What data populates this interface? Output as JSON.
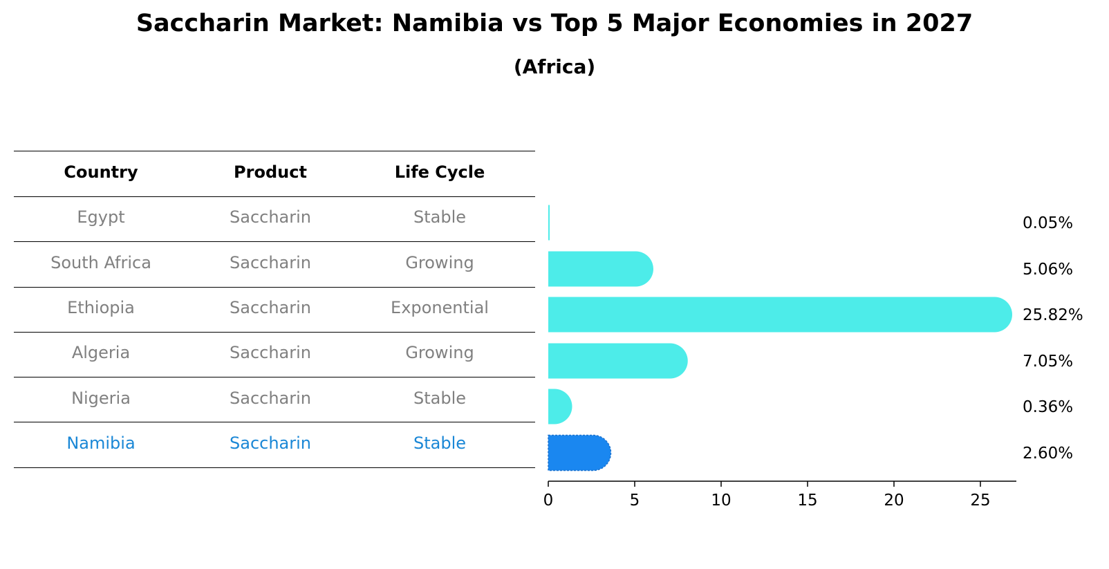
{
  "title": "Saccharin Market: Namibia vs Top 5 Major Economies in 2027",
  "subtitle": "(Africa)",
  "table": {
    "headers": [
      "Country",
      "Product",
      "Life Cycle"
    ],
    "rows": [
      {
        "country": "Egypt",
        "product": "Saccharin",
        "life_cycle": "Stable"
      },
      {
        "country": "South Africa",
        "product": "Saccharin",
        "life_cycle": "Growing"
      },
      {
        "country": "Ethiopia",
        "product": "Saccharin",
        "life_cycle": "Exponential"
      },
      {
        "country": "Algeria",
        "product": "Saccharin",
        "life_cycle": "Growing"
      },
      {
        "country": "Nigeria",
        "product": "Saccharin",
        "life_cycle": "Stable"
      },
      {
        "country": "Namibia",
        "product": "Saccharin",
        "life_cycle": "Stable"
      }
    ]
  },
  "chart_data": {
    "type": "bar",
    "orientation": "horizontal",
    "categories": [
      "Egypt",
      "South Africa",
      "Ethiopia",
      "Algeria",
      "Nigeria",
      "Namibia"
    ],
    "values": [
      0.05,
      5.06,
      25.82,
      7.05,
      0.36,
      2.6
    ],
    "value_labels": [
      "0.05%",
      "5.06%",
      "25.82%",
      "7.05%",
      "0.36%",
      "2.60%"
    ],
    "highlight": "Namibia",
    "xlim": [
      0,
      27
    ],
    "xticks": [
      0,
      5,
      10,
      15,
      20,
      25
    ],
    "xlabel": "",
    "ylabel": "",
    "colors": {
      "default": "#4dece9",
      "highlight": "#1a87f0",
      "highlight_text": "#1a87d6"
    }
  }
}
